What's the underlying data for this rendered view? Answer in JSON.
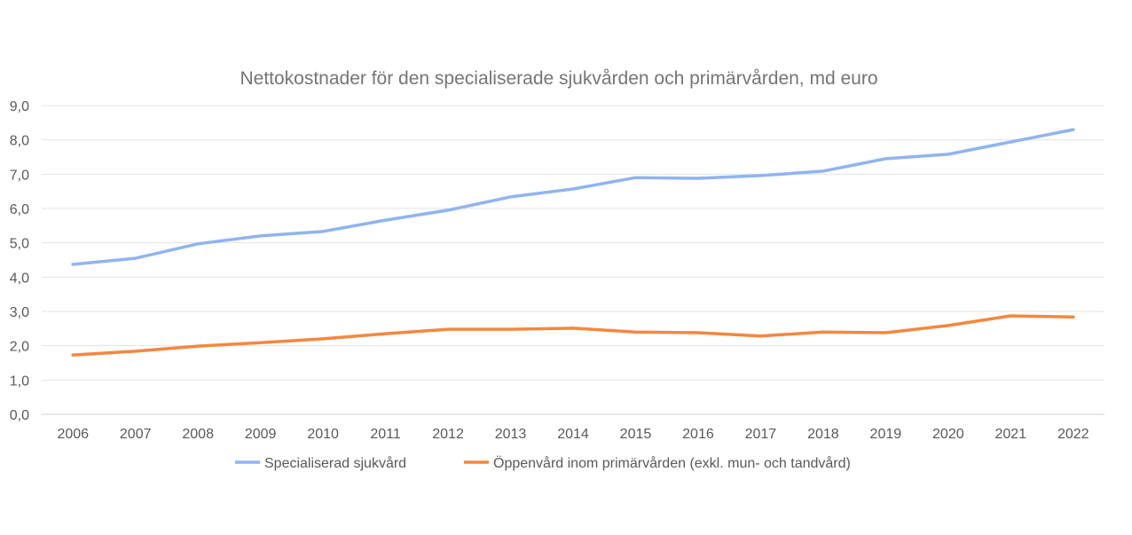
{
  "chart_data": {
    "type": "line",
    "title": "Nettokostnader för den specialiserade sjukvården och primärvården, md euro",
    "xlabel": "",
    "ylabel": "",
    "categories": [
      "2006",
      "2007",
      "2008",
      "2009",
      "2010",
      "2011",
      "2012",
      "2013",
      "2014",
      "2015",
      "2016",
      "2017",
      "2018",
      "2019",
      "2020",
      "2021",
      "2022"
    ],
    "ylim": [
      0,
      9
    ],
    "yticks": [
      "0,0",
      "1,0",
      "2,0",
      "3,0",
      "4,0",
      "5,0",
      "6,0",
      "7,0",
      "8,0",
      "9,0"
    ],
    "grid": true,
    "legend_position": "bottom",
    "series": [
      {
        "name": "Specialiserad sjukvård",
        "color": "#8FB4F0",
        "values": [
          4.37,
          4.55,
          4.97,
          5.2,
          5.33,
          5.66,
          5.95,
          6.34,
          6.57,
          6.9,
          6.88,
          6.96,
          7.09,
          7.45,
          7.58,
          7.94,
          8.3
        ]
      },
      {
        "name": "Öppenvård inom primärvården (exkl. mun- och tandvård)",
        "color": "#F4873E",
        "values": [
          1.73,
          1.84,
          1.99,
          2.09,
          2.2,
          2.35,
          2.48,
          2.48,
          2.51,
          2.4,
          2.38,
          2.28,
          2.4,
          2.38,
          2.59,
          2.87,
          2.84
        ]
      }
    ]
  }
}
